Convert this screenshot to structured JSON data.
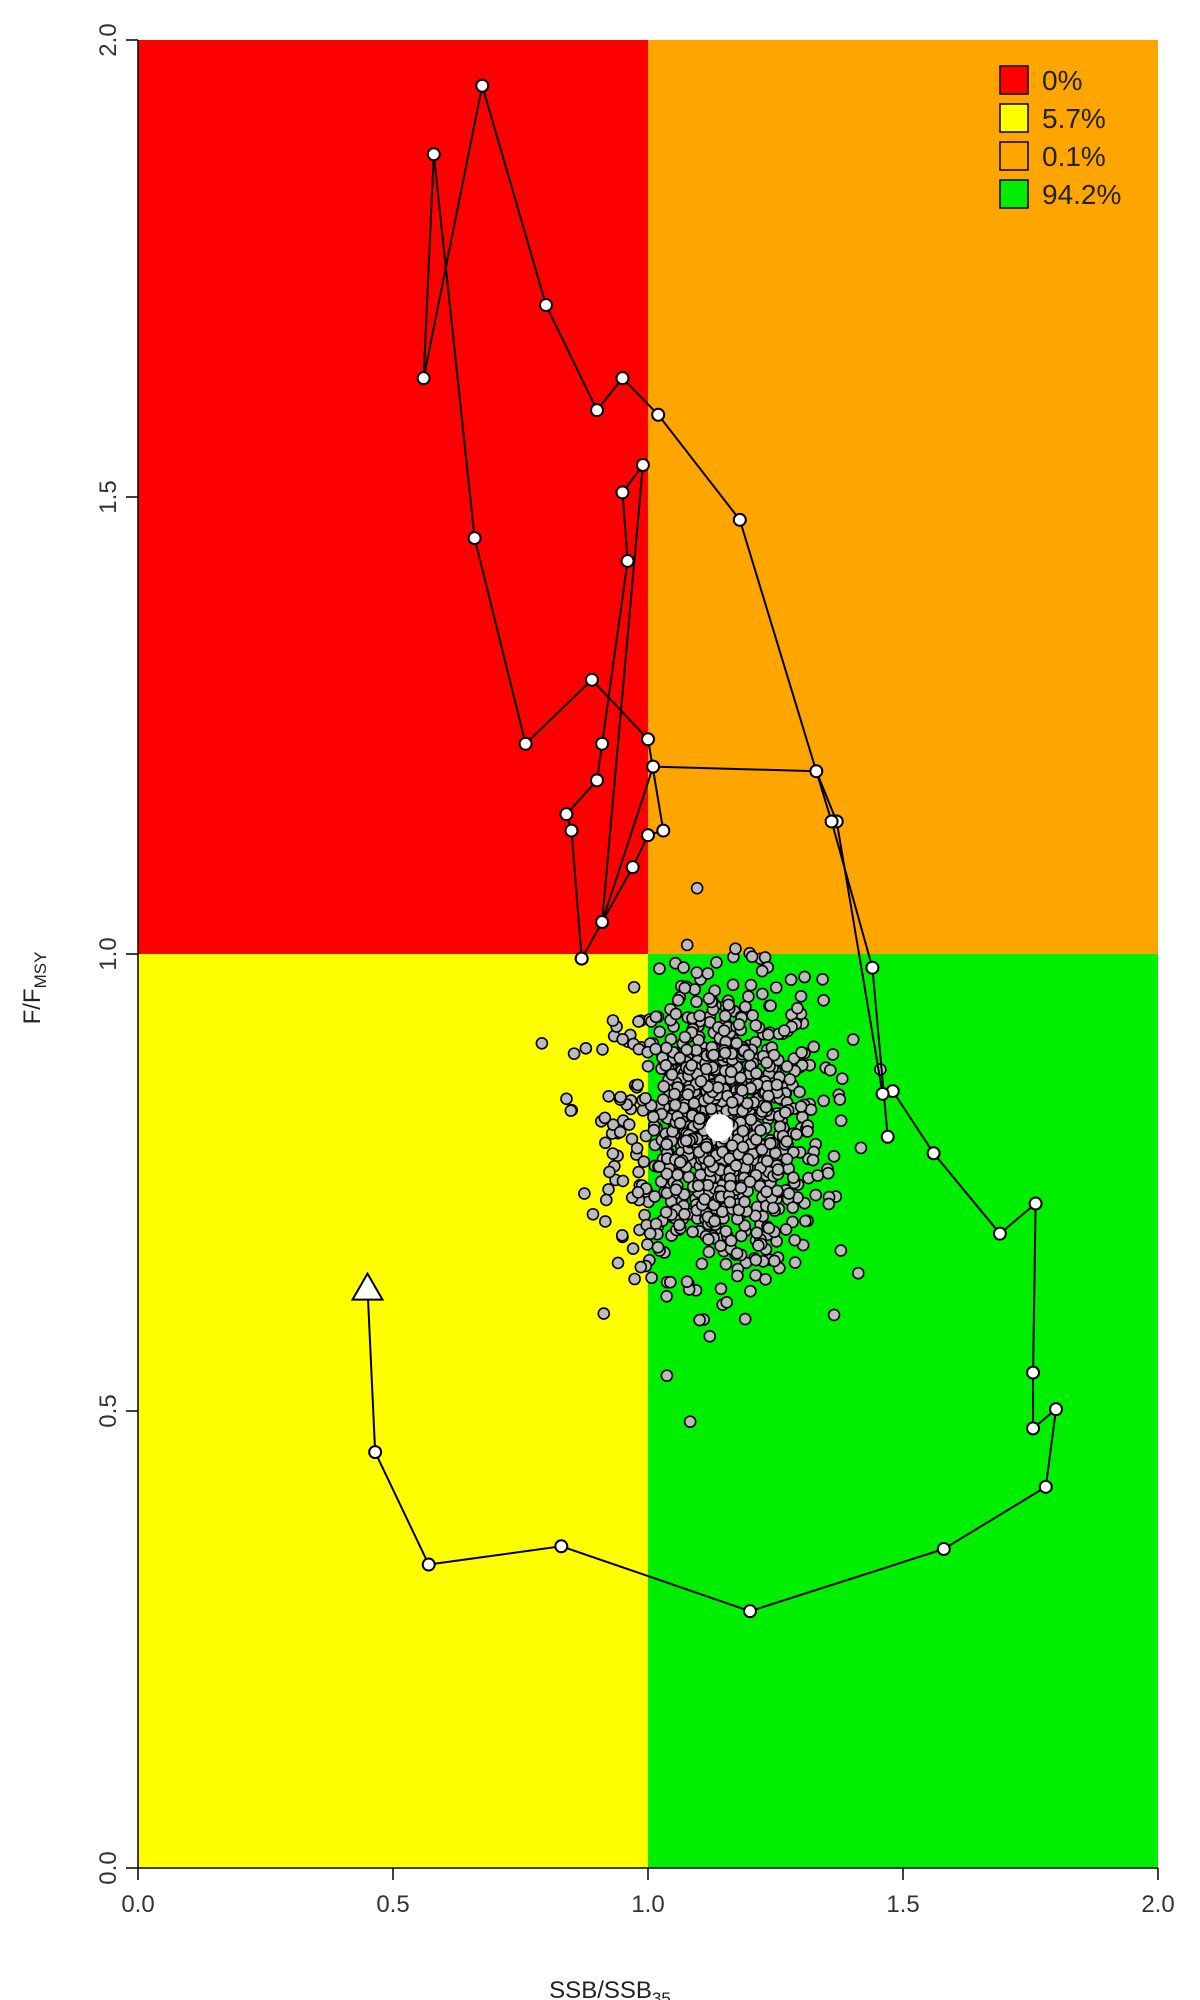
{
  "chart_data": {
    "type": "scatter",
    "title": "",
    "xlabel": {
      "main": "SSB/SSB",
      "sub": "35"
    },
    "ylabel": {
      "main": "F/F",
      "sub": "MSY"
    },
    "xlim": [
      0,
      2
    ],
    "ylim": [
      0,
      2
    ],
    "xticks": [
      "0.0",
      "0.5",
      "1.0",
      "1.5",
      "2.0"
    ],
    "yticks": [
      "0.0",
      "0.5",
      "1.0",
      "1.5",
      "2.0"
    ],
    "grid": false,
    "legend_position": "top-right",
    "quadrants": [
      {
        "name": "overfished-overfishing",
        "x": [
          0,
          1
        ],
        "y": [
          1,
          2
        ],
        "color": "#ff0000"
      },
      {
        "name": "not-overfished-overfishing",
        "x": [
          1,
          2
        ],
        "y": [
          1,
          2
        ],
        "color": "#ffa500"
      },
      {
        "name": "overfished-no-overfishing",
        "x": [
          0,
          1
        ],
        "y": [
          0,
          1
        ],
        "color": "#ffff00"
      },
      {
        "name": "not-overfished-no-overfishing",
        "x": [
          1,
          2
        ],
        "y": [
          0,
          1
        ],
        "color": "#00ee00"
      }
    ],
    "legend": [
      {
        "label": "0%",
        "color": "#ff0000"
      },
      {
        "label": "5.7%",
        "color": "#ffff00"
      },
      {
        "label": "0.1%",
        "color": "#ffa500"
      },
      {
        "label": "94.2%",
        "color": "#00ee00"
      }
    ],
    "trajectory": {
      "x": [
        0.45,
        0.465,
        0.57,
        0.83,
        1.2,
        1.58,
        1.78,
        1.8,
        1.755,
        1.755,
        1.76,
        1.69,
        1.56,
        1.48,
        1.46,
        1.37,
        1.33,
        1.01,
        0.91,
        0.87,
        0.85,
        0.84,
        0.9,
        0.91,
        0.96,
        0.95,
        0.99,
        0.91,
        0.87,
        0.97,
        1.0,
        1.03,
        1.0,
        0.89,
        0.76,
        0.66,
        0.58,
        0.56,
        0.675,
        0.8,
        0.9,
        0.95,
        1.02,
        1.18,
        1.36,
        1.44,
        1.47
      ],
      "y": [
        0.635,
        0.455,
        0.332,
        0.352,
        0.281,
        0.349,
        0.417,
        0.502,
        0.481,
        0.542,
        0.727,
        0.694,
        0.782,
        0.85,
        0.847,
        1.145,
        1.2,
        1.205,
        1.035,
        0.995,
        1.135,
        1.153,
        1.19,
        1.23,
        1.43,
        1.505,
        1.535,
        1.035,
        0.995,
        1.095,
        1.13,
        1.135,
        1.235,
        1.3,
        1.23,
        1.455,
        1.875,
        1.63,
        1.95,
        1.71,
        1.595,
        1.63,
        1.59,
        1.475,
        1.145,
        0.985,
        0.8
      ]
    },
    "start_point": {
      "x": 0.45,
      "y": 0.635,
      "marker": "triangle"
    },
    "current_point": {
      "x": 1.14,
      "y": 0.81,
      "marker": "large-circle"
    },
    "simulation_cloud": {
      "n": 1000,
      "center": [
        1.14,
        0.81
      ],
      "spread": [
        0.1,
        0.08
      ],
      "color": "#bbbbbb"
    }
  }
}
